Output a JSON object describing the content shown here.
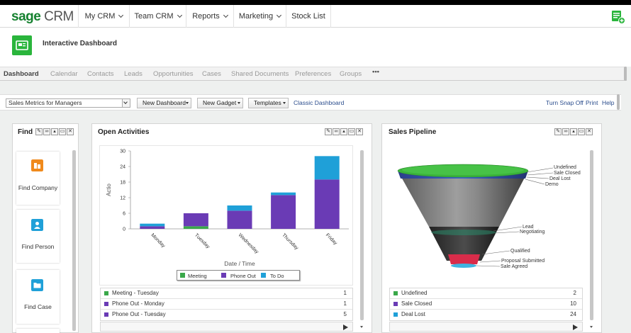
{
  "app": {
    "logo_brand": "sage",
    "logo_product": "CRM",
    "page_title": "Interactive Dashboard"
  },
  "nav": {
    "items": [
      {
        "label": "My CRM",
        "dropdown": true
      },
      {
        "label": "Team CRM",
        "dropdown": true
      },
      {
        "label": "Reports",
        "dropdown": true
      },
      {
        "label": "Marketing",
        "dropdown": true
      },
      {
        "label": "Stock List",
        "dropdown": false
      }
    ]
  },
  "tabs": [
    "Dashboard",
    "Calendar",
    "Contacts",
    "Leads",
    "Opportunities",
    "Cases",
    "Shared Documents",
    "Preferences",
    "Groups",
    "•••"
  ],
  "toolbar": {
    "dashboard_select": "Sales Metrics for Managers",
    "new_dashboard": "New Dashboard",
    "new_gadget": "New Gadget",
    "templates": "Templates",
    "classic_dashboard": "Classic Dashboard",
    "turn_snap_off": "Turn Snap Off",
    "print": "Print",
    "help": "Help"
  },
  "find_panel": {
    "title": "Find",
    "cards": [
      {
        "label": "Find Company",
        "icon": "company-icon"
      },
      {
        "label": "Find Person",
        "icon": "person-icon"
      },
      {
        "label": "Find Case",
        "icon": "folder-icon"
      }
    ]
  },
  "activities_panel": {
    "title": "Open Activities",
    "rows": [
      {
        "label": "Meeting - Tuesday",
        "value": "1",
        "color": "#3aa84a"
      },
      {
        "label": "Phone Out - Monday",
        "value": "1",
        "color": "#6a3bb5"
      },
      {
        "label": "Phone Out - Tuesday",
        "value": "5",
        "color": "#6a3bb5"
      }
    ]
  },
  "pipeline_panel": {
    "title": "Sales Pipeline",
    "funnel_labels": [
      "Undefined",
      "Sale Closed",
      "Deal Lost",
      "Demo",
      "Lead",
      "Negotiating",
      "Qualified",
      "Proposal Submitted",
      "Sale Agreed"
    ],
    "rows": [
      {
        "label": "Undefined",
        "value": "2",
        "color": "#3aa84a"
      },
      {
        "label": "Sale Closed",
        "value": "10",
        "color": "#6a3bb5"
      },
      {
        "label": "Deal Lost",
        "value": "24",
        "color": "#1fa0d8"
      }
    ]
  },
  "colors": {
    "meeting": "#3aa84a",
    "phone_out": "#6a3bb5",
    "to_do": "#1fa0d8",
    "brand": "#15812f"
  },
  "chart_data": {
    "type": "bar",
    "stacked": true,
    "categories": [
      "Monday",
      "Tuesday",
      "Wednesday",
      "Thursday",
      "Friday"
    ],
    "series": [
      {
        "name": "Meeting",
        "values": [
          0,
          1,
          0,
          0,
          0
        ]
      },
      {
        "name": "Phone Out",
        "values": [
          1,
          5,
          7,
          13,
          19
        ]
      },
      {
        "name": "To Do",
        "values": [
          1,
          0,
          2,
          1,
          9
        ]
      }
    ],
    "xlabel": "Date / Time",
    "ylabel": "Actio",
    "ylim": [
      0,
      30
    ],
    "yticks": [
      0,
      6,
      12,
      18,
      24,
      30
    ],
    "legend": "bottom",
    "grid": false
  }
}
